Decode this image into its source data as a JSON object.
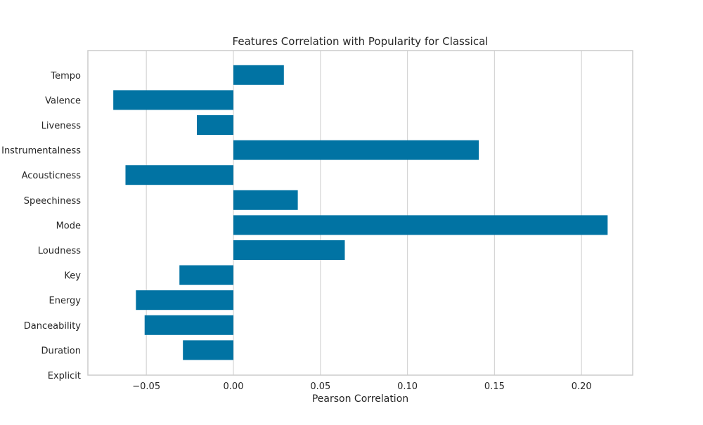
{
  "chart_data": {
    "type": "bar",
    "orientation": "horizontal",
    "title": "Features Correlation with Popularity for Classical",
    "xlabel": "Pearson Correlation",
    "ylabel": "",
    "categories": [
      "Explicit",
      "Duration",
      "Danceability",
      "Energy",
      "Key",
      "Loudness",
      "Mode",
      "Speechiness",
      "Acousticness",
      "Instrumentalness",
      "Liveness",
      "Valence",
      "Tempo"
    ],
    "values": [
      0.0,
      -0.029,
      -0.051,
      -0.056,
      -0.031,
      0.064,
      0.215,
      0.037,
      -0.062,
      0.141,
      -0.021,
      -0.069,
      0.029
    ],
    "xlim": [
      -0.0836,
      0.2294
    ],
    "xticks": [
      -0.05,
      0.0,
      0.05,
      0.1,
      0.15,
      0.2
    ],
    "xtick_labels": [
      "−0.05",
      "0.00",
      "0.05",
      "0.10",
      "0.15",
      "0.20"
    ],
    "grid": true,
    "bar_color": "#0173a3",
    "grid_color": "#d6d6d6",
    "frame_color": "#cccccc"
  }
}
